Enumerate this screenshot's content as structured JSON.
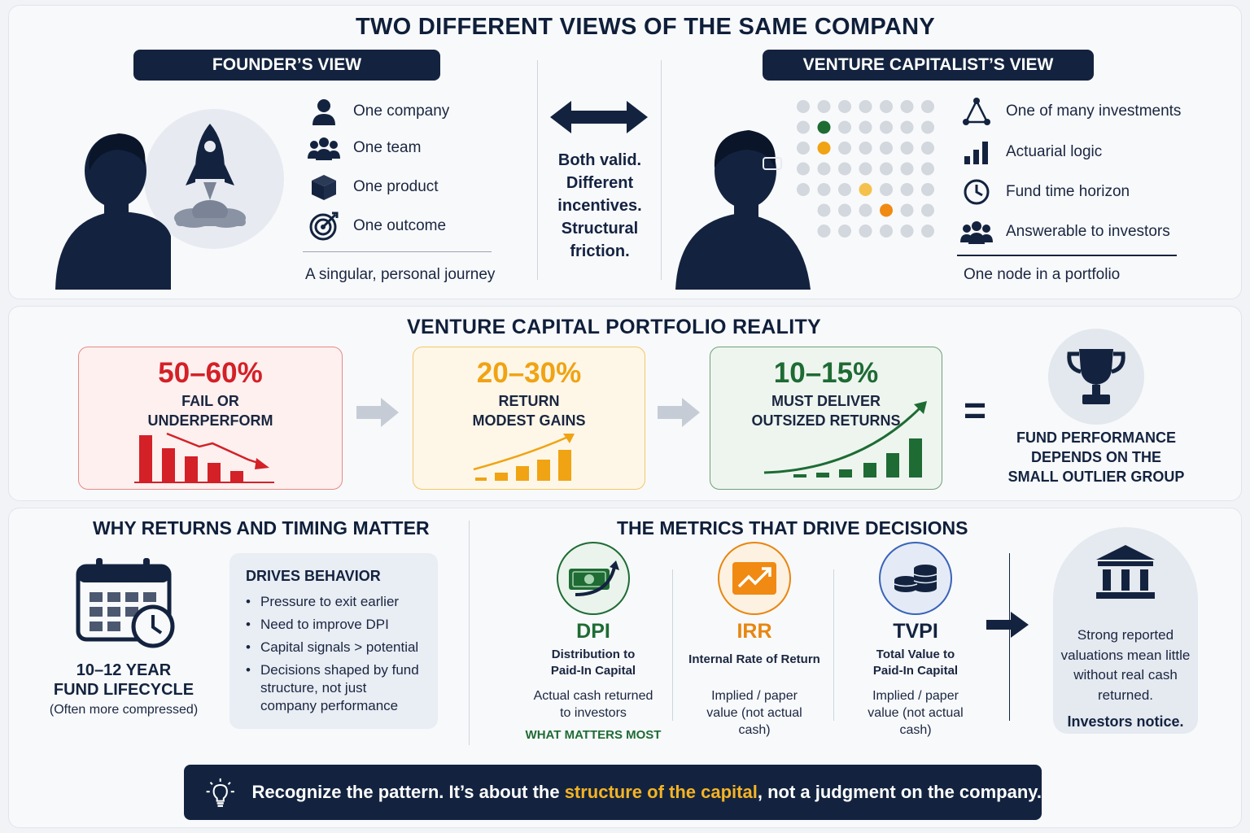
{
  "title": "TWO DIFFERENT VIEWS OF THE SAME COMPANY",
  "founder": {
    "header": "FOUNDER’S VIEW",
    "items": [
      {
        "icon": "person-icon",
        "label": "One company"
      },
      {
        "icon": "team-icon",
        "label": "One team"
      },
      {
        "icon": "box-icon",
        "label": "One product"
      },
      {
        "icon": "target-icon",
        "label": "One outcome"
      }
    ],
    "summary": "A singular, personal journey"
  },
  "middle": {
    "icon": "double-arrow-icon",
    "text_lines": [
      "Both valid.",
      "Different",
      "incentives.",
      "Structural",
      "friction."
    ]
  },
  "vc": {
    "header": "VENTURE CAPITALIST’S VIEW",
    "items": [
      {
        "icon": "network-icon",
        "label": "One of many investments"
      },
      {
        "icon": "bar-chart-icon",
        "label": "Actuarial logic"
      },
      {
        "icon": "clock-icon",
        "label": "Fund time horizon"
      },
      {
        "icon": "group-icon",
        "label": "Answerable to investors"
      }
    ],
    "summary": "One node in a portfolio"
  },
  "portfolio": {
    "title": "VENTURE CAPITAL PORTFOLIO REALITY",
    "cards": [
      {
        "pct": "50–60%",
        "line1": "FAIL OR",
        "line2": "UNDERPERFORM",
        "color": "#d42027",
        "bg": "#fdf0ef",
        "border": "#e58a86"
      },
      {
        "pct": "20–30%",
        "line1": "RETURN",
        "line2": "MODEST GAINS",
        "color": "#f0a313",
        "bg": "#fef7e8",
        "border": "#f3c766"
      },
      {
        "pct": "10–15%",
        "line1": "MUST DELIVER",
        "line2": "OUTSIZED RETURNS",
        "color": "#1e6b34",
        "bg": "#eef5ef",
        "border": "#6f9f79"
      }
    ],
    "equals": "=",
    "result_lines": [
      "FUND PERFORMANCE",
      "DEPENDS ON THE",
      "SMALL OUTLIER GROUP"
    ]
  },
  "timing": {
    "title": "WHY RETURNS AND TIMING MATTER",
    "lifecycle_line1": "10–12 YEAR",
    "lifecycle_line2": "FUND LIFECYCLE",
    "lifecycle_note": "(Often more compressed)",
    "behavior_title": "DRIVES BEHAVIOR",
    "behaviors": [
      "Pressure to exit earlier",
      "Need to improve DPI",
      "Capital signals > potential",
      "Decisions shaped by fund structure, not just company performance"
    ]
  },
  "metrics": {
    "title": "THE METRICS THAT DRIVE DECISIONS",
    "items": [
      {
        "name": "DPI",
        "full": "Distribution to Paid-In Capital",
        "desc": "Actual cash returned to investors",
        "note": "WHAT MATTERS MOST",
        "color": "#1e6b34"
      },
      {
        "name": "IRR",
        "full": "Internal Rate of Return",
        "desc": "Implied / paper value (not actual cash)",
        "note": "",
        "color": "#e8860f"
      },
      {
        "name": "TVPI",
        "full": "Total Value to Paid-In Capital",
        "desc": "Implied / paper value (not actual cash)",
        "note": "",
        "color": "#13233f"
      }
    ],
    "conclusion": "Strong reported valuations mean little without real cash returned.",
    "conclusion_bold": "Investors notice."
  },
  "footer": {
    "pre": "Recognize the pattern. It’s about the ",
    "highlight": "structure of the capital",
    "post": ", not a judgment on the company.",
    "highlight_color": "#f5b324"
  }
}
